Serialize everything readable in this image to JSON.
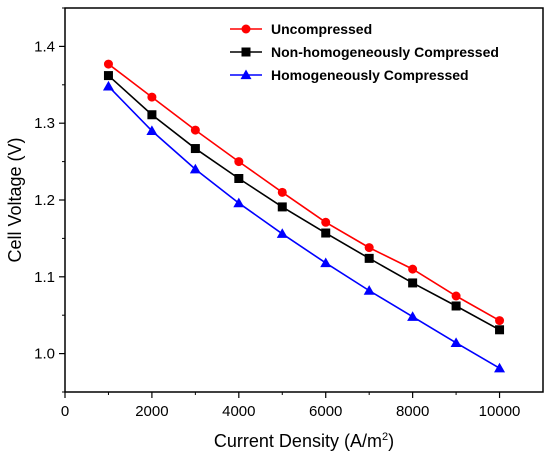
{
  "chart_data": {
    "type": "line",
    "title": "",
    "xlabel": "Current Density (A/m",
    "xlabel_sup": "2",
    "xlabel_end": ")",
    "ylabel": "Cell Voltage (V)",
    "xlim": [
      0,
      11000
    ],
    "ylim": [
      0.95,
      1.45
    ],
    "xticks": [
      0,
      2000,
      4000,
      6000,
      8000,
      10000
    ],
    "yticks": [
      1.0,
      1.1,
      1.2,
      1.3,
      1.4
    ],
    "xtick_labels": [
      "0",
      "2000",
      "4000",
      "6000",
      "8000",
      "10000"
    ],
    "ytick_labels": [
      "1.0",
      "1.1",
      "1.2",
      "1.3",
      "1.4"
    ],
    "grid": false,
    "legend_position": "top-right",
    "x": [
      1000,
      2000,
      3000,
      4000,
      5000,
      6000,
      7000,
      8000,
      9000,
      10000
    ],
    "series": [
      {
        "name": "Uncompressed",
        "color": "#ff0000",
        "marker": "circle",
        "values": [
          1.377,
          1.334,
          1.291,
          1.25,
          1.21,
          1.171,
          1.138,
          1.11,
          1.075,
          1.043
        ]
      },
      {
        "name": "Non-homogeneously Compressed",
        "color": "#000000",
        "marker": "square",
        "values": [
          1.362,
          1.311,
          1.267,
          1.228,
          1.191,
          1.157,
          1.124,
          1.092,
          1.062,
          1.031
        ]
      },
      {
        "name": "Homogeneously Compressed",
        "color": "#0000ff",
        "marker": "triangle",
        "values": [
          1.348,
          1.29,
          1.24,
          1.196,
          1.156,
          1.118,
          1.082,
          1.048,
          1.014,
          0.981
        ]
      }
    ]
  }
}
